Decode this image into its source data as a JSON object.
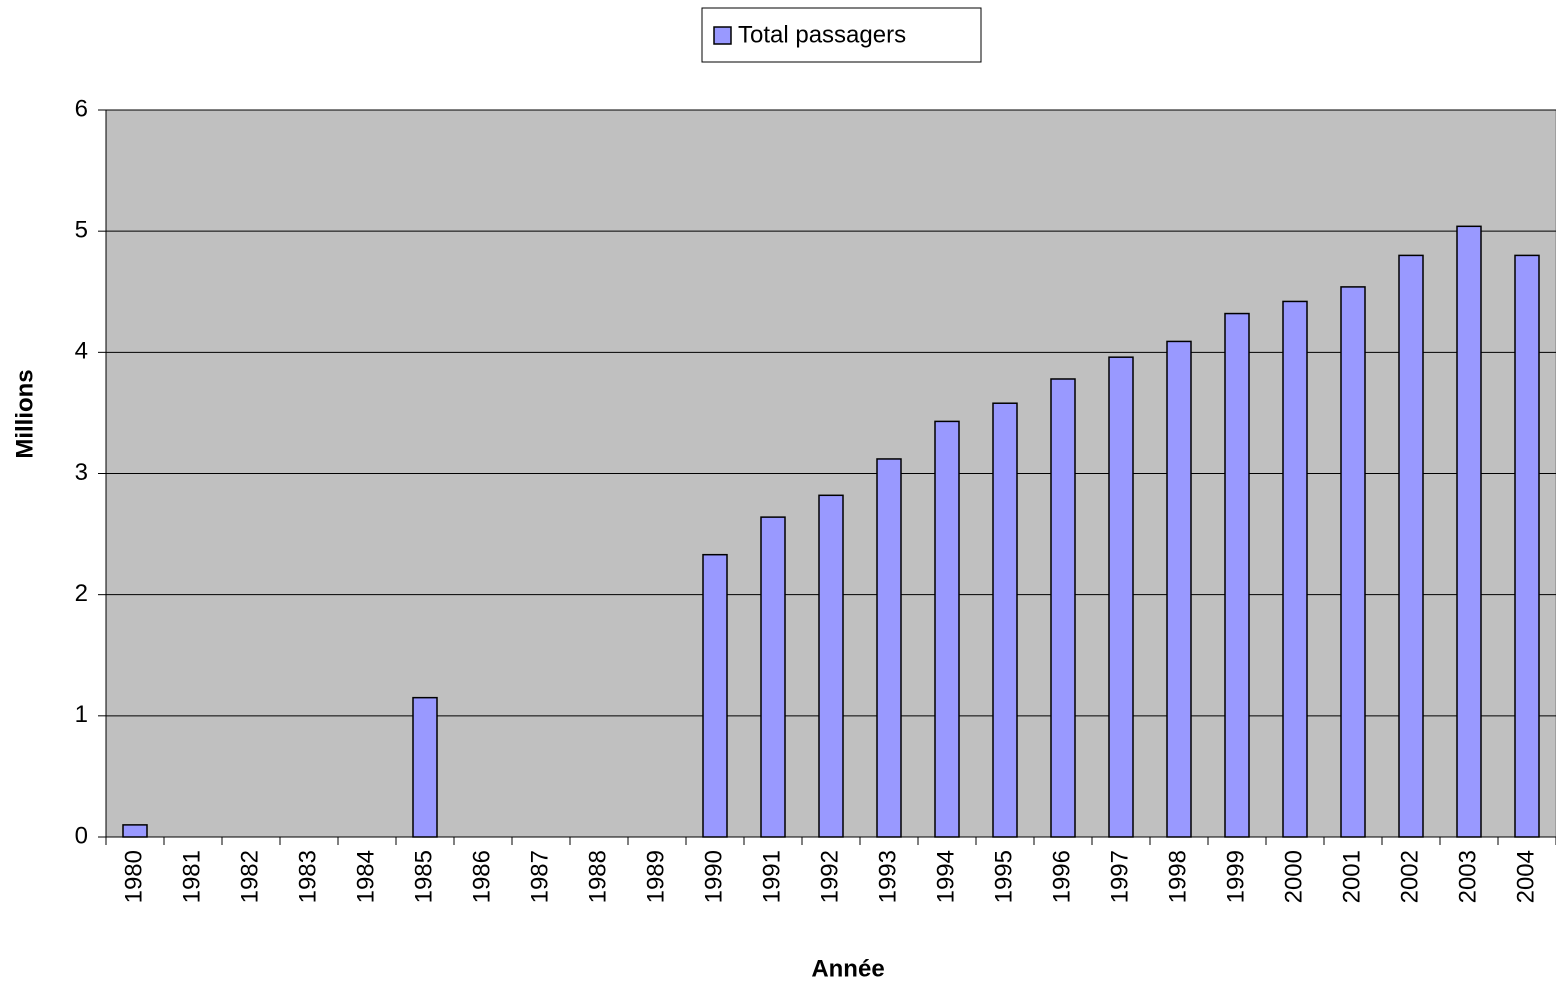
{
  "chart_data": {
    "type": "bar",
    "xlabel": "Année",
    "ylabel": "Millions",
    "categories": [
      "1980",
      "1981",
      "1982",
      "1983",
      "1984",
      "1985",
      "1986",
      "1987",
      "1988",
      "1989",
      "1990",
      "1991",
      "1992",
      "1993",
      "1994",
      "1995",
      "1996",
      "1997",
      "1998",
      "1999",
      "2000",
      "2001",
      "2002",
      "2003",
      "2004"
    ],
    "series": [
      {
        "name": "Total passagers",
        "color": "#9999ff",
        "values": [
          0.1,
          null,
          null,
          null,
          null,
          1.15,
          null,
          null,
          null,
          null,
          2.33,
          2.64,
          2.82,
          3.12,
          3.43,
          3.58,
          3.78,
          3.96,
          4.09,
          4.32,
          4.42,
          4.54,
          4.8,
          5.04,
          4.8
        ]
      }
    ],
    "ylim": [
      0,
      6
    ],
    "yticks": [
      0,
      1,
      2,
      3,
      4,
      5,
      6
    ],
    "grid": true,
    "legend": "top",
    "background": "#c0c0c0"
  }
}
